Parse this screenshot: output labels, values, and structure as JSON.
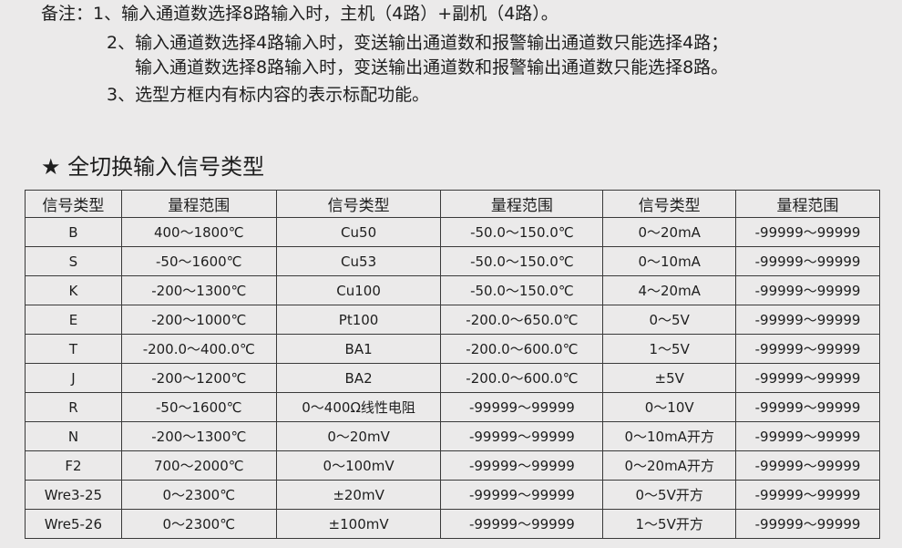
{
  "notes": {
    "label": "备注：",
    "line1": "1、输入通道数选择8路输入时，主机（4路）+副机（4路）。",
    "line2": "2、输入通道数选择4路输入时，变送输出通道数和报警输出通道数只能选择4路；",
    "line3": "输入通道数选择8路输入时，变送输出通道数和报警输出通道数只能选择8路。",
    "line4": "3、选型方框内有标内容的表示标配功能。"
  },
  "section": {
    "star": "★",
    "title": "全切换输入信号类型"
  },
  "table": {
    "headers": [
      "信号类型",
      "量程范围",
      "信号类型",
      "量程范围",
      "信号类型",
      "量程范围"
    ],
    "rows": [
      [
        "B",
        "400～1800℃",
        "Cu50",
        "-50.0～150.0℃",
        "0～20mA",
        "-99999～99999"
      ],
      [
        "S",
        "-50～1600℃",
        "Cu53",
        "-50.0～150.0℃",
        "0～10mA",
        "-99999～99999"
      ],
      [
        "K",
        "-200～1300℃",
        "Cu100",
        "-50.0～150.0℃",
        "4～20mA",
        "-99999～99999"
      ],
      [
        "E",
        "-200～1000℃",
        "Pt100",
        "-200.0～650.0℃",
        "0～5V",
        "-99999～99999"
      ],
      [
        "T",
        "-200.0～400.0℃",
        "BA1",
        "-200.0～600.0℃",
        "1～5V",
        "-99999～99999"
      ],
      [
        "J",
        "-200～1200℃",
        "BA2",
        "-200.0～600.0℃",
        "±5V",
        "-99999～99999"
      ],
      [
        "R",
        "-50～1600℃",
        "0～400Ω线性电阻",
        "-99999～99999",
        "0～10V",
        "-99999～99999"
      ],
      [
        "N",
        "-200～1300℃",
        "0～20mV",
        "-99999～99999",
        "0～10mA开方",
        "-99999～99999"
      ],
      [
        "F2",
        "700～2000℃",
        "0～100mV",
        "-99999～99999",
        "0～20mA开方",
        "-99999～99999"
      ],
      [
        "Wre3-25",
        "0～2300℃",
        "±20mV",
        "-99999～99999",
        "0～5V开方",
        "-99999～99999"
      ],
      [
        "Wre5-26",
        "0～2300℃",
        "±100mV",
        "-99999～99999",
        "1～5V开方",
        "-99999～99999"
      ]
    ]
  }
}
